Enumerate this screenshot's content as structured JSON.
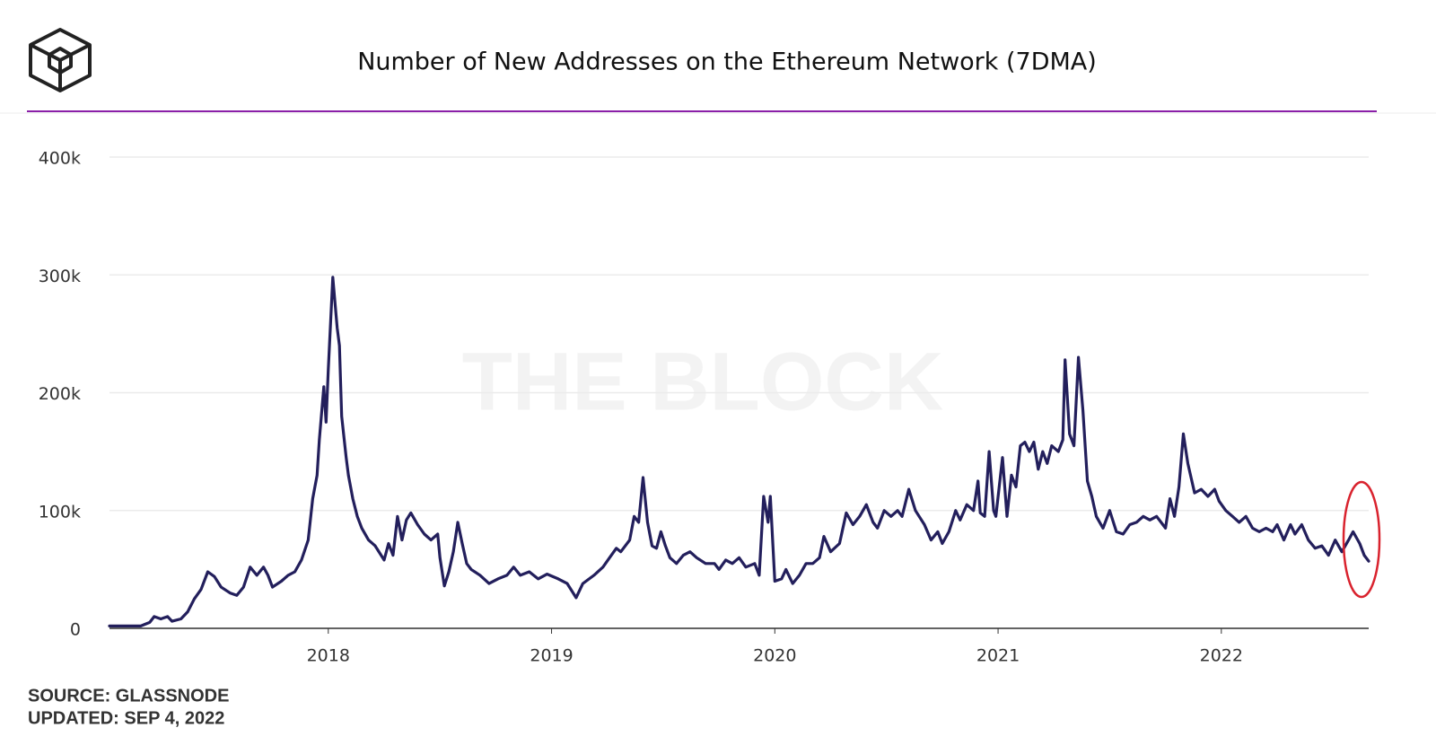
{
  "chart_data": {
    "type": "line",
    "title": "Number of New Addresses on the Ethereum Network (7DMA)",
    "watermark": "THE BLOCK",
    "source": "SOURCE: GLASSNODE",
    "updated": "UPDATED: SEP 4, 2022",
    "color": "#231f5c",
    "grid": true,
    "xlim": [
      2017.02,
      2022.66
    ],
    "xticks": [
      2018,
      2019,
      2020,
      2021,
      2022
    ],
    "ylim": [
      0,
      400000
    ],
    "yticks": [
      0,
      {
        "value": 100000,
        "label": "100k"
      },
      {
        "value": 200000,
        "label": "200k"
      },
      {
        "value": 300000,
        "label": "300k"
      },
      {
        "value": 400000,
        "label": "400k"
      }
    ],
    "x": [
      2017.02,
      2017.1,
      2017.16,
      2017.2,
      2017.22,
      2017.25,
      2017.28,
      2017.3,
      2017.34,
      2017.37,
      2017.4,
      2017.43,
      2017.46,
      2017.49,
      2017.52,
      2017.56,
      2017.59,
      2017.62,
      2017.65,
      2017.68,
      2017.71,
      2017.73,
      2017.75,
      2017.79,
      2017.82,
      2017.85,
      2017.88,
      2017.91,
      2017.93,
      2017.95,
      2017.96,
      2017.98,
      2017.99,
      2018.0,
      2018.02,
      2018.04,
      2018.05,
      2018.06,
      2018.08,
      2018.09,
      2018.11,
      2018.13,
      2018.15,
      2018.18,
      2018.21,
      2018.25,
      2018.27,
      2018.29,
      2018.31,
      2018.33,
      2018.35,
      2018.37,
      2018.4,
      2018.43,
      2018.46,
      2018.49,
      2018.5,
      2018.52,
      2018.54,
      2018.56,
      2018.58,
      2018.6,
      2018.62,
      2018.64,
      2018.68,
      2018.72,
      2018.76,
      2018.8,
      2018.83,
      2018.86,
      2018.9,
      2018.94,
      2018.98,
      2019.03,
      2019.07,
      2019.11,
      2019.14,
      2019.19,
      2019.23,
      2019.26,
      2019.29,
      2019.31,
      2019.35,
      2019.37,
      2019.39,
      2019.41,
      2019.43,
      2019.45,
      2019.47,
      2019.49,
      2019.51,
      2019.53,
      2019.56,
      2019.59,
      2019.62,
      2019.65,
      2019.69,
      2019.73,
      2019.75,
      2019.78,
      2019.81,
      2019.84,
      2019.87,
      2019.91,
      2019.93,
      2019.95,
      2019.97,
      2019.98,
      2020.0,
      2020.03,
      2020.05,
      2020.08,
      2020.11,
      2020.14,
      2020.17,
      2020.2,
      2020.22,
      2020.25,
      2020.29,
      2020.32,
      2020.35,
      2020.38,
      2020.41,
      2020.44,
      2020.46,
      2020.49,
      2020.52,
      2020.55,
      2020.57,
      2020.6,
      2020.63,
      2020.67,
      2020.7,
      2020.73,
      2020.75,
      2020.78,
      2020.81,
      2020.83,
      2020.86,
      2020.89,
      2020.91,
      2020.92,
      2020.94,
      2020.96,
      2020.98,
      2020.99,
      2021.02,
      2021.04,
      2021.06,
      2021.08,
      2021.1,
      2021.12,
      2021.14,
      2021.16,
      2021.18,
      2021.2,
      2021.22,
      2021.24,
      2021.27,
      2021.29,
      2021.3,
      2021.32,
      2021.34,
      2021.36,
      2021.38,
      2021.4,
      2021.42,
      2021.44,
      2021.47,
      2021.5,
      2021.53,
      2021.56,
      2021.59,
      2021.62,
      2021.65,
      2021.68,
      2021.71,
      2021.73,
      2021.75,
      2021.77,
      2021.79,
      2021.81,
      2021.83,
      2021.85,
      2021.88,
      2021.91,
      2021.94,
      2021.97,
      2021.99,
      2022.02,
      2022.05,
      2022.08,
      2022.11,
      2022.14,
      2022.17,
      2022.2,
      2022.23,
      2022.25,
      2022.28,
      2022.31,
      2022.33,
      2022.36,
      2022.39,
      2022.42,
      2022.45,
      2022.48,
      2022.51,
      2022.54,
      2022.57,
      2022.59,
      2022.62,
      2022.64,
      2022.66
    ],
    "values": [
      2000,
      2000,
      2000,
      5000,
      10000,
      8000,
      10000,
      6000,
      8000,
      14000,
      25000,
      33000,
      48000,
      44000,
      35000,
      30000,
      28000,
      35000,
      52000,
      45000,
      52000,
      45000,
      35000,
      40000,
      45000,
      48000,
      58000,
      75000,
      110000,
      130000,
      160000,
      205000,
      175000,
      220000,
      298000,
      255000,
      240000,
      180000,
      145000,
      130000,
      110000,
      95000,
      85000,
      75000,
      70000,
      58000,
      72000,
      62000,
      95000,
      75000,
      92000,
      98000,
      88000,
      80000,
      75000,
      80000,
      60000,
      36000,
      48000,
      65000,
      90000,
      72000,
      55000,
      50000,
      45000,
      38000,
      42000,
      45000,
      52000,
      45000,
      48000,
      42000,
      46000,
      42000,
      38000,
      26000,
      38000,
      45000,
      52000,
      60000,
      68000,
      65000,
      75000,
      95000,
      90000,
      128000,
      90000,
      70000,
      68000,
      82000,
      70000,
      60000,
      55000,
      62000,
      65000,
      60000,
      55000,
      55000,
      50000,
      58000,
      55000,
      60000,
      52000,
      55000,
      45000,
      112000,
      90000,
      112000,
      40000,
      42000,
      50000,
      38000,
      45000,
      55000,
      55000,
      60000,
      78000,
      65000,
      72000,
      98000,
      88000,
      95000,
      105000,
      90000,
      85000,
      100000,
      95000,
      100000,
      95000,
      118000,
      100000,
      88000,
      75000,
      82000,
      72000,
      82000,
      100000,
      92000,
      105000,
      100000,
      125000,
      98000,
      95000,
      150000,
      100000,
      95000,
      145000,
      95000,
      130000,
      120000,
      155000,
      158000,
      150000,
      158000,
      135000,
      150000,
      140000,
      155000,
      150000,
      160000,
      228000,
      165000,
      155000,
      230000,
      185000,
      125000,
      112000,
      95000,
      85000,
      100000,
      82000,
      80000,
      88000,
      90000,
      95000,
      92000,
      95000,
      90000,
      85000,
      110000,
      95000,
      120000,
      165000,
      140000,
      115000,
      118000,
      112000,
      118000,
      108000,
      100000,
      95000,
      90000,
      95000,
      85000,
      82000,
      85000,
      82000,
      88000,
      75000,
      88000,
      80000,
      88000,
      75000,
      68000,
      70000,
      62000,
      75000,
      65000,
      75000,
      82000,
      72000,
      62000,
      57000
    ]
  }
}
